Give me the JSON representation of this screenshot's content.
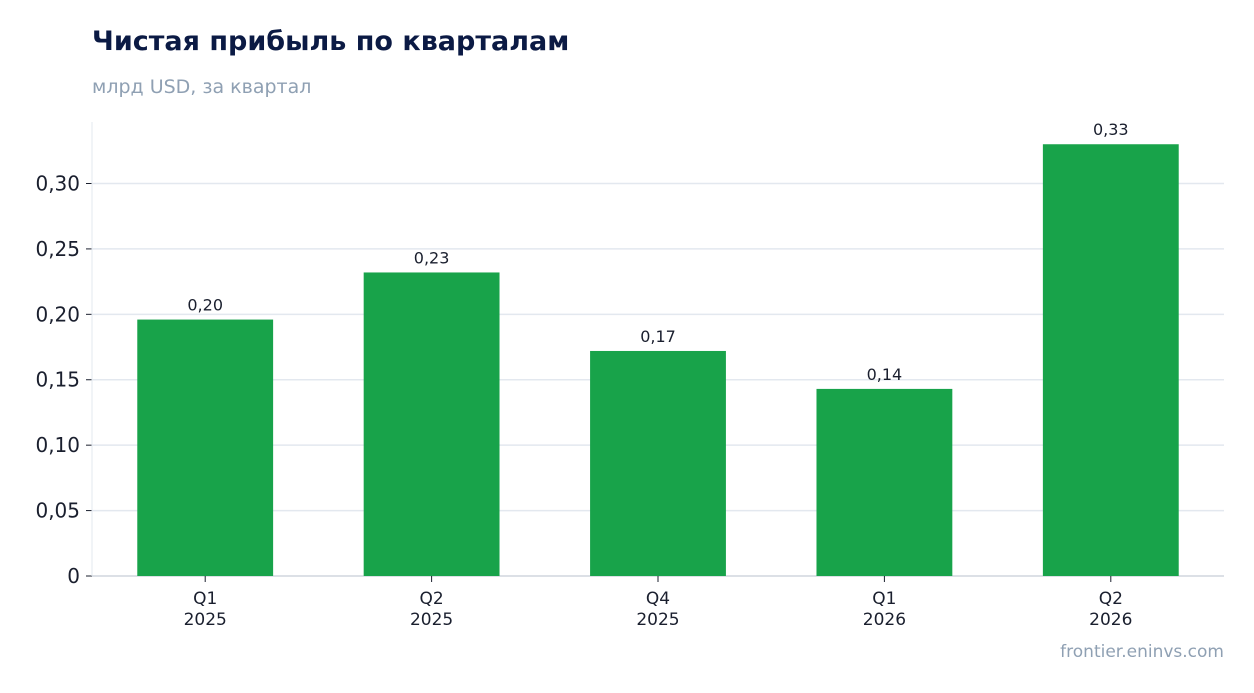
{
  "header": {
    "title": "Чистая прибыль по кварталам",
    "subtitle": "млрд USD, за квартал"
  },
  "footer": {
    "source": "frontier.eninvs.com"
  },
  "chart_data": {
    "type": "bar",
    "title": "Чистая прибыль по кварталам",
    "subtitle": "млрд USD, за квартал",
    "categories": [
      [
        "Q1",
        "2025"
      ],
      [
        "Q2",
        "2025"
      ],
      [
        "Q4",
        "2025"
      ],
      [
        "Q1",
        "2026"
      ],
      [
        "Q2",
        "2026"
      ]
    ],
    "values": [
      0.196,
      0.232,
      0.172,
      0.143,
      0.33
    ],
    "data_labels": [
      "0,20",
      "0,23",
      "0,17",
      "0,14",
      "0,33"
    ],
    "yticks": [
      0,
      0.05,
      0.1,
      0.15,
      0.2,
      0.25,
      0.3
    ],
    "ytick_labels": [
      "0",
      "0,05",
      "0,10",
      "0,15",
      "0,20",
      "0,25",
      "0,30"
    ],
    "ylim": [
      0,
      0.347
    ],
    "grid": true,
    "bar_color": "#18a34a",
    "xlabel": "",
    "ylabel": ""
  }
}
